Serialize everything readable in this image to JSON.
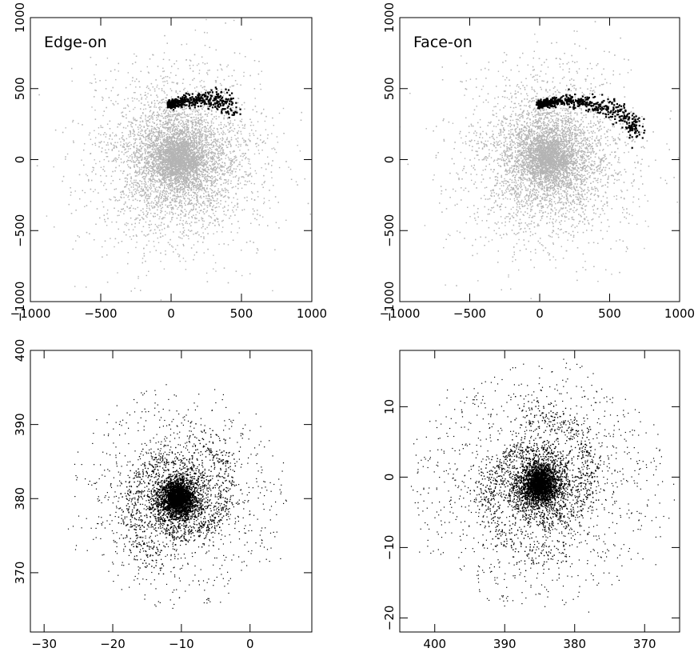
{
  "chart_data": [
    {
      "type": "scatter",
      "panel_label": "Edge-on",
      "xlim": [
        -1000,
        1000
      ],
      "ylim": [
        -1000,
        1000
      ],
      "x_ticks": [
        -1000,
        -500,
        0,
        500,
        1000
      ],
      "y_ticks": [
        -1000,
        -500,
        0,
        500,
        1000
      ],
      "x_reversed": false,
      "series": [
        {
          "role": "background",
          "color": "#b4b4b4",
          "count": 9000,
          "center": [
            50,
            0
          ],
          "spread": 330
        },
        {
          "role": "stream",
          "color": "#000000",
          "count": 420,
          "path": [
            [
              -10,
              385
            ],
            [
              60,
              405
            ],
            [
              150,
              420
            ],
            [
              250,
              425
            ],
            [
              330,
              415
            ],
            [
              400,
              395
            ],
            [
              460,
              370
            ]
          ],
          "width": 18
        }
      ]
    },
    {
      "type": "scatter",
      "panel_label": "Face-on",
      "xlim": [
        -1000,
        1000
      ],
      "ylim": [
        -1000,
        1000
      ],
      "x_ticks": [
        -1000,
        -500,
        0,
        500,
        1000
      ],
      "y_ticks": [
        -1000,
        -500,
        0,
        500,
        1000
      ],
      "x_reversed": false,
      "series": [
        {
          "role": "background",
          "color": "#b4b4b4",
          "count": 9000,
          "center": [
            60,
            10
          ],
          "spread": 330
        },
        {
          "role": "stream",
          "color": "#000000",
          "count": 560,
          "path": [
            [
              0,
              390
            ],
            [
              100,
              405
            ],
            [
              220,
              415
            ],
            [
              350,
              400
            ],
            [
              470,
              370
            ],
            [
              580,
              320
            ],
            [
              660,
              260
            ],
            [
              700,
              190
            ]
          ],
          "width": 16
        }
      ]
    },
    {
      "type": "scatter",
      "panel_label": "",
      "xlim": [
        -32,
        9
      ],
      "ylim": [
        362,
        400
      ],
      "x_ticks": [
        -30,
        -20,
        -10,
        0
      ],
      "y_ticks": [
        370,
        380,
        390,
        400
      ],
      "x_reversed": false,
      "series": [
        {
          "role": "spiral-galaxy",
          "color": "#000000",
          "center": [
            -10.5,
            380
          ],
          "core_count": 1400,
          "arm_count": 2600,
          "halo_count": 900,
          "scale_x": 1.0,
          "scale_y": 1.0,
          "max_radius": 11
        }
      ]
    },
    {
      "type": "scatter",
      "panel_label": "",
      "xlim": [
        405,
        365
      ],
      "ylim": [
        -22,
        18
      ],
      "x_ticks": [
        400,
        390,
        380,
        370
      ],
      "y_ticks": [
        -20,
        -10,
        0,
        10
      ],
      "x_reversed": true,
      "series": [
        {
          "role": "spiral-galaxy",
          "color": "#000000",
          "center": [
            385,
            -1
          ],
          "core_count": 1400,
          "arm_count": 2600,
          "halo_count": 1200,
          "scale_x": 1.0,
          "scale_y": 1.0,
          "max_radius": 13
        }
      ]
    }
  ]
}
